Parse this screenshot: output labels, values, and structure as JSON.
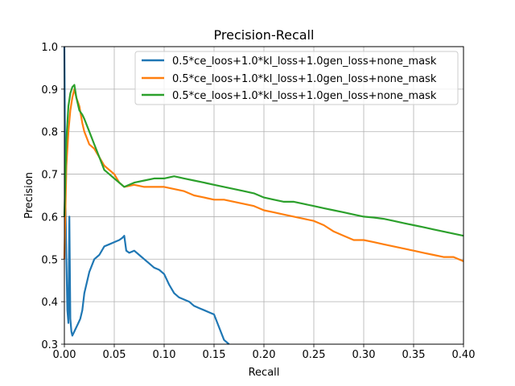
{
  "chart_data": {
    "type": "line",
    "title": "Precision-Recall",
    "xlabel": "Recall",
    "ylabel": "Precision",
    "xlim": [
      0.0,
      0.4
    ],
    "ylim": [
      0.3,
      1.0
    ],
    "xticks": [
      0.0,
      0.05,
      0.1,
      0.15,
      0.2,
      0.25,
      0.3,
      0.35,
      0.4
    ],
    "xtick_labels": [
      "0.00",
      "0.05",
      "0.10",
      "0.15",
      "0.20",
      "0.25",
      "0.30",
      "0.35",
      "0.40"
    ],
    "yticks": [
      0.3,
      0.4,
      0.5,
      0.6,
      0.7,
      0.8,
      0.9,
      1.0
    ],
    "ytick_labels": [
      "0.3",
      "0.4",
      "0.5",
      "0.6",
      "0.7",
      "0.8",
      "0.9",
      "1.0"
    ],
    "grid": true,
    "legend_position": "top-right",
    "series": [
      {
        "name": "0.5*ce_loos+1.0*kl_loss+1.0gen_loss+none_mask",
        "color": "#1f77b4",
        "x": [
          0.0,
          0.001,
          0.002,
          0.003,
          0.004,
          0.005,
          0.006,
          0.007,
          0.008,
          0.01,
          0.012,
          0.014,
          0.016,
          0.018,
          0.02,
          0.025,
          0.03,
          0.035,
          0.04,
          0.045,
          0.05,
          0.055,
          0.058,
          0.06,
          0.062,
          0.065,
          0.07,
          0.075,
          0.08,
          0.085,
          0.09,
          0.095,
          0.1,
          0.105,
          0.11,
          0.115,
          0.12,
          0.125,
          0.13,
          0.135,
          0.14,
          0.145,
          0.15,
          0.155,
          0.16,
          0.165
        ],
        "y": [
          1.0,
          0.65,
          0.5,
          0.38,
          0.35,
          0.6,
          0.36,
          0.33,
          0.32,
          0.33,
          0.34,
          0.35,
          0.36,
          0.38,
          0.42,
          0.47,
          0.5,
          0.51,
          0.53,
          0.535,
          0.54,
          0.545,
          0.55,
          0.555,
          0.52,
          0.515,
          0.52,
          0.51,
          0.5,
          0.49,
          0.48,
          0.475,
          0.465,
          0.44,
          0.42,
          0.41,
          0.405,
          0.4,
          0.39,
          0.385,
          0.38,
          0.375,
          0.37,
          0.34,
          0.31,
          0.3
        ]
      },
      {
        "name": "0.5*ce_loos+1.0*kl_loss+1.0gen_loss+none_mask",
        "color": "#ff7f0e",
        "x": [
          0.0,
          0.002,
          0.004,
          0.006,
          0.008,
          0.01,
          0.012,
          0.015,
          0.018,
          0.02,
          0.025,
          0.03,
          0.035,
          0.04,
          0.045,
          0.05,
          0.055,
          0.06,
          0.07,
          0.08,
          0.09,
          0.1,
          0.11,
          0.12,
          0.13,
          0.14,
          0.15,
          0.16,
          0.17,
          0.18,
          0.19,
          0.2,
          0.21,
          0.22,
          0.23,
          0.24,
          0.25,
          0.26,
          0.27,
          0.28,
          0.29,
          0.3,
          0.31,
          0.32,
          0.33,
          0.34,
          0.35,
          0.36,
          0.37,
          0.38,
          0.39,
          0.4
        ],
        "y": [
          0.5,
          0.72,
          0.8,
          0.85,
          0.88,
          0.9,
          0.88,
          0.86,
          0.82,
          0.8,
          0.77,
          0.76,
          0.74,
          0.72,
          0.71,
          0.7,
          0.68,
          0.67,
          0.675,
          0.67,
          0.67,
          0.67,
          0.665,
          0.66,
          0.65,
          0.645,
          0.64,
          0.64,
          0.635,
          0.63,
          0.625,
          0.615,
          0.61,
          0.605,
          0.6,
          0.595,
          0.59,
          0.58,
          0.565,
          0.555,
          0.545,
          0.545,
          0.54,
          0.535,
          0.53,
          0.525,
          0.52,
          0.515,
          0.51,
          0.505,
          0.505,
          0.495
        ]
      },
      {
        "name": "0.5*ce_loos+1.0*kl_loss+1.0gen_loss+none_mask",
        "color": "#2ca02c",
        "x": [
          0.0,
          0.002,
          0.004,
          0.006,
          0.008,
          0.01,
          0.012,
          0.015,
          0.018,
          0.02,
          0.025,
          0.03,
          0.035,
          0.04,
          0.045,
          0.05,
          0.055,
          0.06,
          0.07,
          0.08,
          0.09,
          0.1,
          0.11,
          0.12,
          0.13,
          0.14,
          0.15,
          0.16,
          0.17,
          0.18,
          0.19,
          0.2,
          0.21,
          0.22,
          0.23,
          0.24,
          0.25,
          0.26,
          0.27,
          0.28,
          0.29,
          0.3,
          0.31,
          0.32,
          0.33,
          0.34,
          0.35,
          0.36,
          0.37,
          0.38,
          0.39,
          0.4
        ],
        "y": [
          0.6,
          0.78,
          0.86,
          0.89,
          0.905,
          0.91,
          0.88,
          0.85,
          0.84,
          0.83,
          0.8,
          0.77,
          0.74,
          0.71,
          0.7,
          0.69,
          0.68,
          0.67,
          0.68,
          0.685,
          0.69,
          0.69,
          0.695,
          0.69,
          0.685,
          0.68,
          0.675,
          0.67,
          0.665,
          0.66,
          0.655,
          0.645,
          0.64,
          0.635,
          0.635,
          0.63,
          0.625,
          0.62,
          0.615,
          0.61,
          0.605,
          0.6,
          0.598,
          0.595,
          0.59,
          0.585,
          0.58,
          0.575,
          0.57,
          0.565,
          0.56,
          0.555
        ]
      }
    ]
  }
}
